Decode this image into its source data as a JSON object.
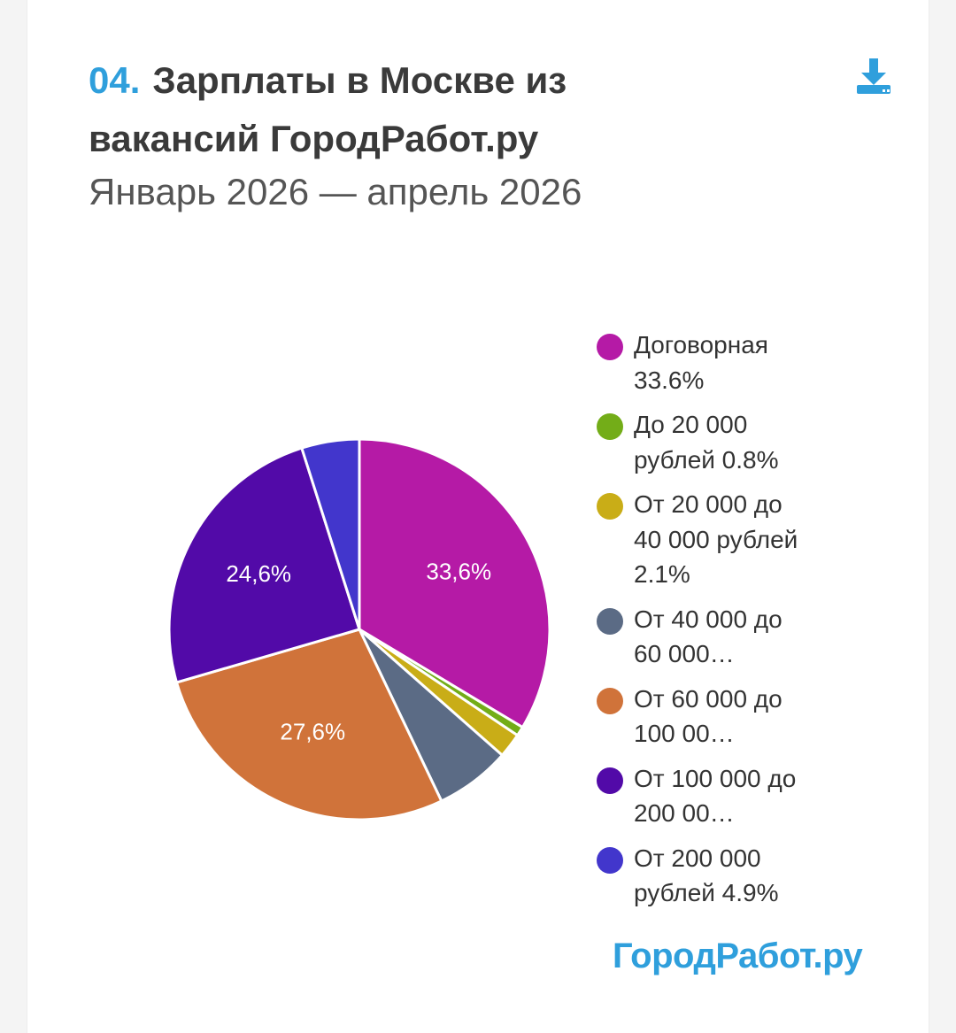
{
  "header": {
    "number": "04.",
    "title": "Зарплаты в Москве из вакансий ГородРабот.ру",
    "subtitle": "Январь 2026 — апрель 2026"
  },
  "toolbar": {
    "download_icon": "download-icon"
  },
  "logo": "ГородРабот.ру",
  "colors": {
    "accent": "#2f9fdc",
    "slices": [
      "#b51aa6",
      "#73ad18",
      "#c9ad17",
      "#5b6b85",
      "#d0733a",
      "#520aa8",
      "#4236cc"
    ]
  },
  "legend": [
    {
      "text": "Договорная 33.6%"
    },
    {
      "text": "До 20 000 рублей 0.8%"
    },
    {
      "text": "От 20 000 до 40 000 рублей 2.1%"
    },
    {
      "text": "От 40 000 до 60 000…"
    },
    {
      "text": "От 60 000 до 100 00…"
    },
    {
      "text": "От 100 000 до 200 00…"
    },
    {
      "text": "От 200 000 рублей 4.9%"
    }
  ],
  "chart_data": {
    "type": "pie",
    "title": "Зарплаты в Москве из вакансий ГородРабот.ру",
    "subtitle": "Январь 2026 — апрель 2026",
    "legend_position": "right",
    "categories": [
      "Договорная",
      "До 20 000 рублей",
      "От 20 000 до 40 000 рублей",
      "От 40 000 до 60 000…",
      "От 60 000 до 100 00…",
      "От 100 000 до 200 00…",
      "От 200 000 рублей"
    ],
    "values": [
      33.6,
      0.8,
      2.1,
      6.4,
      27.6,
      24.6,
      4.9
    ],
    "data_labels": [
      "33,6%",
      "",
      "",
      "",
      "27,6%",
      "24,6%",
      ""
    ]
  }
}
